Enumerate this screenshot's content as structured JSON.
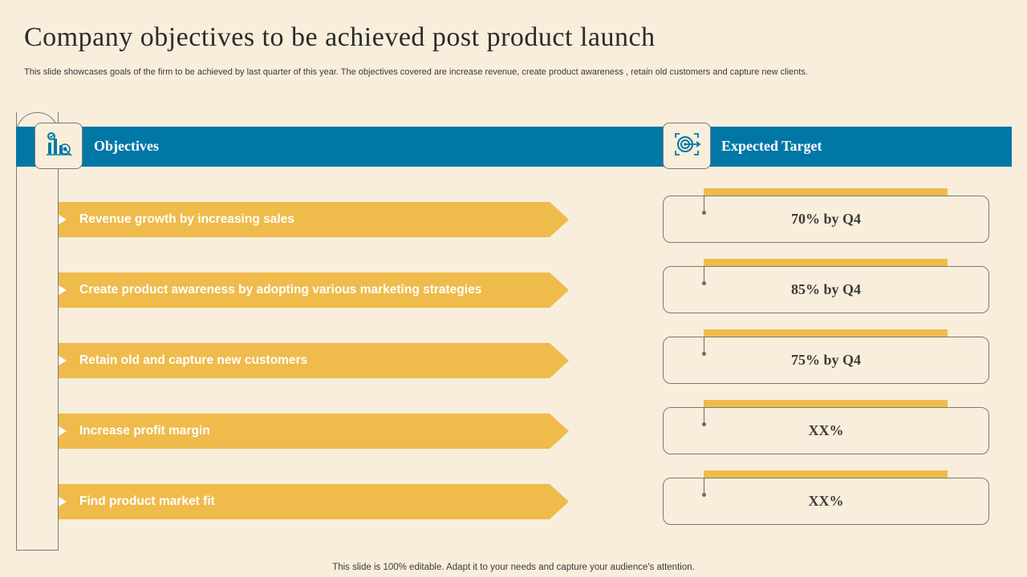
{
  "slide": {
    "title": "Company objectives to be achieved post product launch",
    "subtitle": "This slide showcases goals of the firm to  be achieved by last quarter of this year.  The objectives covered are increase revenue, create product awareness , retain old customers and capture new clients.",
    "footer": "This slide is 100% editable. Adapt it to your needs and capture your audience's attention."
  },
  "header": {
    "objectives_label": "Objectives",
    "target_label": "Expected Target",
    "objectives_icon": "chart-target-icon",
    "target_icon": "bullseye-icon"
  },
  "objectives": [
    {
      "text": "Revenue growth by increasing sales",
      "target": "70% by Q4"
    },
    {
      "text": "Create product awareness by adopting various marketing strategies",
      "target": "85% by Q4"
    },
    {
      "text": "Retain old and capture new customers",
      "target": "75% by Q4"
    },
    {
      "text": "Increase profit margin",
      "target": "XX%"
    },
    {
      "text": "Find product market fit",
      "target": "XX%"
    }
  ],
  "colors": {
    "background": "#f8eedb",
    "header": "#0177a6",
    "accent": "#efbb4b"
  }
}
